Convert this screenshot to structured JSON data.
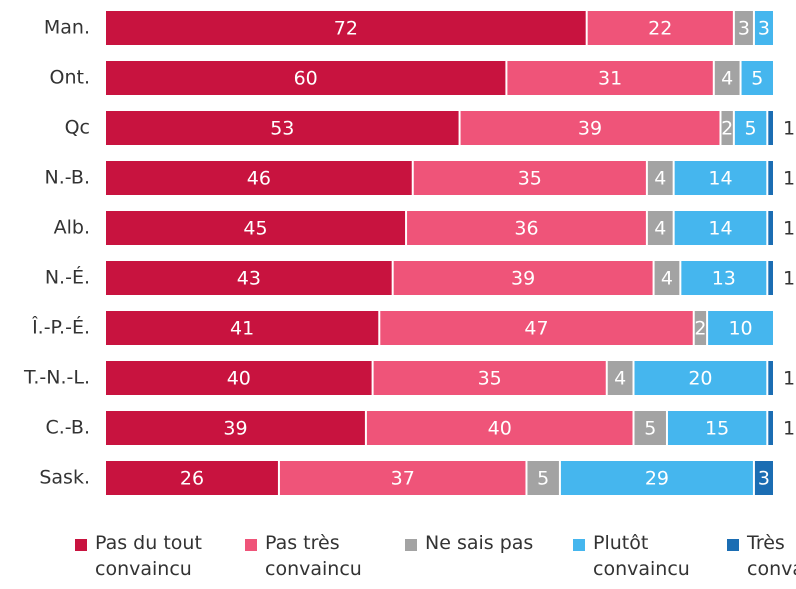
{
  "chart_data": {
    "type": "stacked-bar-horizontal",
    "categories": [
      "Man.",
      "Ont.",
      "Qc",
      "N.-B.",
      "Alb.",
      "N.-É.",
      "Î.-P.-É.",
      "T.-N.-L.",
      "C.-B.",
      "Sask."
    ],
    "series": [
      {
        "name": "Pas du tout convaincu",
        "color": "#c8133f",
        "values": [
          72,
          60,
          53,
          46,
          45,
          43,
          41,
          40,
          39,
          26
        ]
      },
      {
        "name": "Pas très convaincu",
        "color": "#ef5479",
        "values": [
          22,
          31,
          39,
          35,
          36,
          39,
          47,
          35,
          40,
          37
        ]
      },
      {
        "name": "Ne sais pas",
        "color": "#a3a3a3",
        "values": [
          3,
          4,
          2,
          4,
          4,
          4,
          2,
          4,
          5,
          5
        ]
      },
      {
        "name": "Plutôt convaincu",
        "color": "#45b6ee",
        "values": [
          3,
          5,
          5,
          14,
          14,
          13,
          10,
          20,
          15,
          29
        ]
      },
      {
        "name": "Très convaincu",
        "color": "#1b6db3",
        "values": [
          null,
          null,
          1,
          1,
          1,
          1,
          null,
          1,
          1,
          3
        ]
      }
    ],
    "xlim": [
      0,
      100
    ]
  }
}
